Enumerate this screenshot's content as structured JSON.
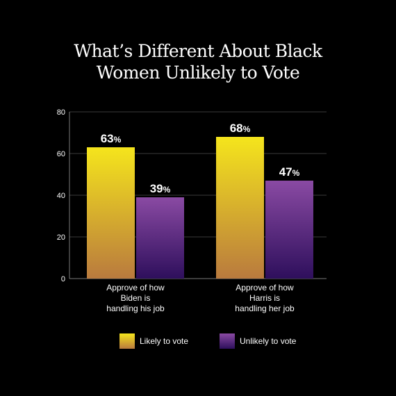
{
  "chart_data": {
    "type": "bar",
    "title_lines": [
      "What’s Different About Black",
      "Women Unlikely to Vote"
    ],
    "categories": [
      [
        "Approve of how",
        "Biden is",
        "handling his job"
      ],
      [
        "Approve of how",
        "Harris is",
        "handling her job"
      ]
    ],
    "series": [
      {
        "name": "Likely to vote",
        "values": [
          63,
          68
        ],
        "color_top": "#f5e51c",
        "color_bottom": "#b97a3e"
      },
      {
        "name": "Unlikely to vote",
        "values": [
          39,
          47
        ],
        "color_top": "#8a4aa3",
        "color_bottom": "#2e0f5c"
      }
    ],
    "value_suffix": "%",
    "yticks": [
      0,
      20,
      40,
      60,
      80
    ],
    "ylim": [
      0,
      80
    ],
    "grid": true,
    "legend_position": "bottom"
  }
}
